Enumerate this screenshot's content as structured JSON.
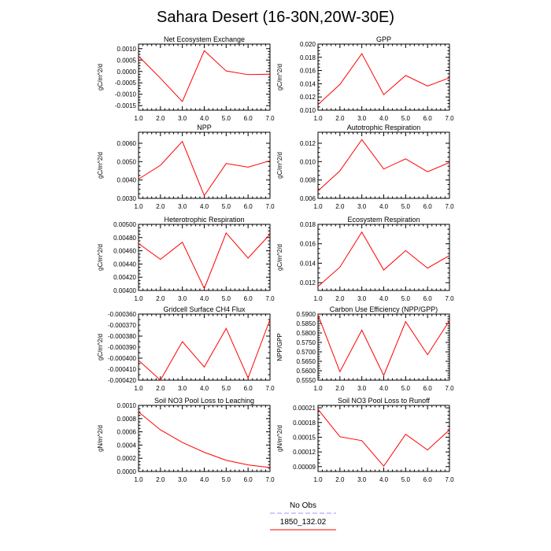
{
  "page_title": "Sahara Desert (16-30N,20W-30E)",
  "colors": {
    "line": "#ff0000",
    "legend_dash": "#9999ff",
    "axis": "#000000"
  },
  "legend": {
    "items": [
      {
        "label": "No Obs",
        "style": "dashed",
        "color": "#9999ff"
      },
      {
        "label": "1850_132.02",
        "style": "solid",
        "color": "#ff0000"
      }
    ]
  },
  "chart_data": [
    {
      "type": "line",
      "title": "Net Ecosystem Exchange",
      "ylabel": "gC/m^2/d",
      "x": [
        1,
        2,
        3,
        4,
        5,
        6,
        7
      ],
      "xlim": [
        1,
        7
      ],
      "xticks": [
        "1.0",
        "2.0",
        "3.0",
        "4.0",
        "5.0",
        "6.0",
        "7.0"
      ],
      "ylim": [
        -0.0017,
        0.0012
      ],
      "yticks": [
        -0.0015,
        -0.001,
        -0.0005,
        0.0,
        0.0005,
        0.001
      ],
      "yticklabels": [
        "-0.0015",
        "-0.0010",
        "-0.0005",
        "0.0000",
        "0.0005",
        "0.0010"
      ],
      "series": [
        {
          "name": "1850_132.02",
          "values": [
            0.00067,
            -0.0003,
            -0.00132,
            0.00091,
            2e-05,
            -0.00014,
            -0.00012
          ]
        }
      ]
    },
    {
      "type": "line",
      "title": "GPP",
      "ylabel": "gC/m^2/d",
      "x": [
        1,
        2,
        3,
        4,
        5,
        6,
        7
      ],
      "xlim": [
        1,
        7
      ],
      "xticks": [
        "1.0",
        "2.0",
        "3.0",
        "4.0",
        "5.0",
        "6.0",
        "7.0"
      ],
      "ylim": [
        0.01,
        0.02
      ],
      "yticks": [
        0.01,
        0.012,
        0.014,
        0.016,
        0.018,
        0.02
      ],
      "yticklabels": [
        "0.010",
        "0.012",
        "0.014",
        "0.016",
        "0.018",
        "0.020"
      ],
      "series": [
        {
          "name": "1850_132.02",
          "values": [
            0.01085,
            0.0139,
            0.01855,
            0.01235,
            0.01525,
            0.01365,
            0.0149
          ]
        }
      ]
    },
    {
      "type": "line",
      "title": "NPP",
      "ylabel": "gC/m^2/d",
      "x": [
        1,
        2,
        3,
        4,
        5,
        6,
        7
      ],
      "xlim": [
        1,
        7
      ],
      "xticks": [
        "1.0",
        "2.0",
        "3.0",
        "4.0",
        "5.0",
        "6.0",
        "7.0"
      ],
      "ylim": [
        0.003,
        0.0066
      ],
      "yticks": [
        0.003,
        0.004,
        0.005,
        0.006
      ],
      "yticklabels": [
        "0.0030",
        "0.0040",
        "0.0050",
        "0.0060"
      ],
      "series": [
        {
          "name": "1850_132.02",
          "values": [
            0.00405,
            0.0048,
            0.0061,
            0.00315,
            0.0049,
            0.0047,
            0.00505
          ]
        }
      ]
    },
    {
      "type": "line",
      "title": "Autotrophic Respiration",
      "ylabel": "gC/m^2/d",
      "x": [
        1,
        2,
        3,
        4,
        5,
        6,
        7
      ],
      "xlim": [
        1,
        7
      ],
      "xticks": [
        "1.0",
        "2.0",
        "3.0",
        "4.0",
        "5.0",
        "6.0",
        "7.0"
      ],
      "ylim": [
        0.006,
        0.0132
      ],
      "yticks": [
        0.006,
        0.008,
        0.01,
        0.012
      ],
      "yticklabels": [
        "0.006",
        "0.008",
        "0.010",
        "0.012"
      ],
      "series": [
        {
          "name": "1850_132.02",
          "values": [
            0.0068,
            0.009,
            0.0124,
            0.0092,
            0.0103,
            0.0089,
            0.0099
          ]
        }
      ]
    },
    {
      "type": "line",
      "title": "Heterotrophic Respiration",
      "ylabel": "gC/m^2/d",
      "x": [
        1,
        2,
        3,
        4,
        5,
        6,
        7
      ],
      "xlim": [
        1,
        7
      ],
      "xticks": [
        "1.0",
        "2.0",
        "3.0",
        "4.0",
        "5.0",
        "6.0",
        "7.0"
      ],
      "ylim": [
        0.004,
        0.005
      ],
      "yticks": [
        0.004,
        0.0042,
        0.0044,
        0.0046,
        0.0048,
        0.005
      ],
      "yticklabels": [
        "0.00400",
        "0.00420",
        "0.00440",
        "0.00460",
        "0.00480",
        "0.00500"
      ],
      "series": [
        {
          "name": "1850_132.02",
          "values": [
            0.00471,
            0.00447,
            0.00473,
            0.00403,
            0.00487,
            0.00449,
            0.00485
          ]
        }
      ]
    },
    {
      "type": "line",
      "title": "Ecosystem Respiration",
      "ylabel": "gC/m^2/d",
      "x": [
        1,
        2,
        3,
        4,
        5,
        6,
        7
      ],
      "xlim": [
        1,
        7
      ],
      "xticks": [
        "1.0",
        "2.0",
        "3.0",
        "4.0",
        "5.0",
        "6.0",
        "7.0"
      ],
      "ylim": [
        0.0112,
        0.018
      ],
      "yticks": [
        0.012,
        0.014,
        0.016,
        0.018
      ],
      "yticklabels": [
        "0.012",
        "0.014",
        "0.016",
        "0.018"
      ],
      "series": [
        {
          "name": "1850_132.02",
          "values": [
            0.0116,
            0.0136,
            0.0172,
            0.0133,
            0.0153,
            0.0135,
            0.0148
          ]
        }
      ]
    },
    {
      "type": "line",
      "title": "Gridcell Surface CH4 Flux",
      "ylabel": "gC/m^2/d",
      "x": [
        1,
        2,
        3,
        4,
        5,
        6,
        7
      ],
      "xlim": [
        1,
        7
      ],
      "xticks": [
        "1.0",
        "2.0",
        "3.0",
        "4.0",
        "5.0",
        "6.0",
        "7.0"
      ],
      "ylim": [
        -0.00042,
        -0.00036
      ],
      "yticks": [
        -0.00042,
        -0.0004,
        -0.00038,
        -0.00036
      ],
      "yticklabels": [
        "-0.000420",
        "-0.000400",
        "-0.000380",
        "-0.000360"
      ],
      "yminor": [
        -0.00041,
        -0.00039,
        -0.00037
      ],
      "yminorlabels": [
        "-0.000410",
        "-0.000390",
        "-0.000370"
      ],
      "series": [
        {
          "name": "1850_132.02",
          "values": [
            -0.000402,
            -0.00042,
            -0.000385,
            -0.000408,
            -0.000373,
            -0.000418,
            -0.000365
          ]
        }
      ]
    },
    {
      "type": "line",
      "title": "Carbon Use Efficiency (NPP/GPP)",
      "ylabel": "NPP/GPP",
      "x": [
        1,
        2,
        3,
        4,
        5,
        6,
        7
      ],
      "xlim": [
        1,
        7
      ],
      "xticks": [
        "1.0",
        "2.0",
        "3.0",
        "4.0",
        "5.0",
        "6.0",
        "7.0"
      ],
      "ylim": [
        0.555,
        0.59
      ],
      "yticks": [
        0.555,
        0.56,
        0.565,
        0.57,
        0.575,
        0.58,
        0.585,
        0.59
      ],
      "yticklabels": [
        "0.5550",
        "0.5600",
        "0.5650",
        "0.5700",
        "0.5750",
        "0.5800",
        "0.5850",
        "0.5900"
      ],
      "series": [
        {
          "name": "1850_132.02",
          "values": [
            0.5895,
            0.5595,
            0.5815,
            0.5575,
            0.586,
            0.5685,
            0.5865
          ]
        }
      ]
    },
    {
      "type": "line",
      "title": "Soil NO3 Pool Loss to Leaching",
      "ylabel": "gN/m^2/d",
      "x": [
        1,
        2,
        3,
        4,
        5,
        6,
        7
      ],
      "xlim": [
        1,
        7
      ],
      "xticks": [
        "1.0",
        "2.0",
        "3.0",
        "4.0",
        "5.0",
        "6.0",
        "7.0"
      ],
      "ylim": [
        0.0,
        0.001
      ],
      "yticks": [
        0.0,
        0.0002,
        0.0004,
        0.0006,
        0.0008,
        0.001
      ],
      "yticklabels": [
        "0.0000",
        "0.0002",
        "0.0004",
        "0.0006",
        "0.0008",
        "0.0010"
      ],
      "series": [
        {
          "name": "1850_132.02",
          "values": [
            0.0009,
            0.00063,
            0.00044,
            0.00029,
            0.00017,
            0.0001,
            6e-05
          ]
        }
      ]
    },
    {
      "type": "line",
      "title": "Soil NO3 Pool Loss to Runoff",
      "ylabel": "gN/m^2/d",
      "x": [
        1,
        2,
        3,
        4,
        5,
        6,
        7
      ],
      "xlim": [
        1,
        7
      ],
      "xticks": [
        "1.0",
        "2.0",
        "3.0",
        "4.0",
        "5.0",
        "6.0",
        "7.0"
      ],
      "ylim": [
        8e-05,
        0.000215
      ],
      "yticks": [
        9e-05,
        0.00012,
        0.00015,
        0.00018,
        0.00021
      ],
      "yticklabels": [
        "0.00009",
        "0.00012",
        "0.00015",
        "0.00018",
        "0.00021"
      ],
      "series": [
        {
          "name": "1850_132.02",
          "values": [
            0.000207,
            0.000151,
            0.000143,
            9.1e-05,
            0.000156,
            0.000124,
            0.000165
          ]
        }
      ]
    }
  ]
}
